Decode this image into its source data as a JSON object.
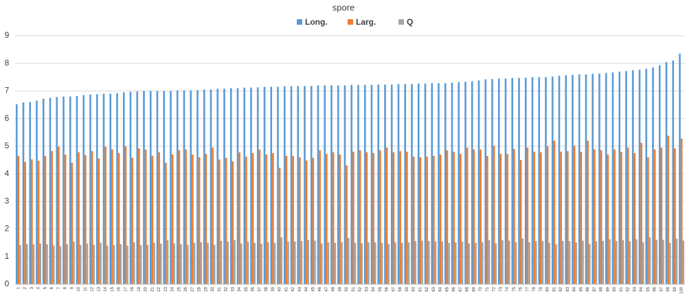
{
  "chart_data": {
    "type": "bar",
    "title": "spore",
    "categories": [
      "1",
      "2",
      "3",
      "4",
      "5",
      "6",
      "7",
      "8",
      "9",
      "10",
      "11",
      "12",
      "13",
      "14",
      "15",
      "16",
      "17",
      "18",
      "19",
      "20",
      "21",
      "22",
      "23",
      "24",
      "25",
      "26",
      "27",
      "28",
      "29",
      "30",
      "31",
      "32",
      "33",
      "34",
      "35",
      "36",
      "37",
      "38",
      "39",
      "40",
      "41",
      "42",
      "43",
      "44",
      "45",
      "46",
      "47",
      "48",
      "49",
      "50",
      "51",
      "52",
      "53",
      "54",
      "55",
      "56",
      "57",
      "58",
      "59",
      "60",
      "61",
      "62",
      "63",
      "64",
      "65",
      "66",
      "67",
      "68",
      "69",
      "70",
      "71",
      "72",
      "73",
      "74",
      "75",
      "76",
      "77",
      "78",
      "79",
      "80",
      "81",
      "82",
      "83",
      "84",
      "85",
      "86",
      "87",
      "88",
      "89",
      "90",
      "91",
      "92",
      "93",
      "94",
      "95",
      "96",
      "97",
      "98",
      "99",
      "100"
    ],
    "series": [
      {
        "name": "Long.",
        "color": "#5b9bd5",
        "values": [
          6.52,
          6.58,
          6.6,
          6.65,
          6.72,
          6.75,
          6.78,
          6.8,
          6.8,
          6.82,
          6.85,
          6.87,
          6.88,
          6.9,
          6.9,
          6.92,
          6.95,
          6.97,
          6.98,
          7.0,
          7.0,
          7.0,
          7.0,
          7.0,
          7.02,
          7.02,
          7.02,
          7.03,
          7.05,
          7.05,
          7.08,
          7.08,
          7.1,
          7.1,
          7.12,
          7.12,
          7.13,
          7.15,
          7.15,
          7.15,
          7.17,
          7.17,
          7.18,
          7.18,
          7.18,
          7.2,
          7.2,
          7.2,
          7.2,
          7.2,
          7.22,
          7.22,
          7.22,
          7.22,
          7.23,
          7.23,
          7.23,
          7.25,
          7.25,
          7.25,
          7.27,
          7.27,
          7.28,
          7.28,
          7.28,
          7.3,
          7.32,
          7.33,
          7.35,
          7.38,
          7.42,
          7.43,
          7.45,
          7.45,
          7.47,
          7.47,
          7.48,
          7.5,
          7.5,
          7.5,
          7.52,
          7.55,
          7.57,
          7.58,
          7.6,
          7.6,
          7.62,
          7.63,
          7.65,
          7.67,
          7.7,
          7.72,
          7.75,
          7.77,
          7.8,
          7.85,
          7.93,
          8.05,
          8.1,
          8.35
        ]
      },
      {
        "name": "Larg.",
        "color": "#ed7d31",
        "values": [
          4.65,
          4.43,
          4.52,
          4.47,
          4.65,
          4.82,
          4.98,
          4.7,
          4.4,
          4.78,
          4.68,
          4.82,
          4.55,
          4.98,
          4.88,
          4.75,
          5.0,
          4.58,
          4.92,
          4.88,
          4.65,
          4.78,
          4.4,
          4.7,
          4.85,
          4.88,
          4.7,
          4.6,
          4.72,
          4.95,
          4.52,
          4.58,
          4.45,
          4.78,
          4.62,
          4.75,
          4.88,
          4.7,
          4.75,
          4.22,
          4.65,
          4.65,
          4.6,
          4.48,
          4.58,
          4.85,
          4.72,
          4.78,
          4.7,
          4.3,
          4.8,
          4.85,
          4.78,
          4.75,
          4.85,
          4.95,
          4.78,
          4.82,
          4.8,
          4.62,
          4.6,
          4.62,
          4.65,
          4.7,
          4.85,
          4.8,
          4.72,
          4.95,
          4.88,
          4.88,
          4.65,
          5.02,
          4.72,
          4.72,
          4.9,
          4.5,
          4.95,
          4.8,
          4.78,
          5.0,
          5.2,
          4.8,
          4.82,
          5.02,
          4.8,
          5.2,
          4.88,
          4.85,
          4.7,
          4.88,
          4.8,
          4.95,
          4.75,
          5.12,
          4.6,
          4.88,
          4.95,
          5.38,
          4.92,
          5.28
        ]
      },
      {
        "name": "Q",
        "color": "#a5a5a5",
        "values": [
          1.42,
          1.45,
          1.45,
          1.48,
          1.45,
          1.4,
          1.38,
          1.45,
          1.55,
          1.43,
          1.47,
          1.43,
          1.5,
          1.4,
          1.42,
          1.45,
          1.4,
          1.52,
          1.42,
          1.43,
          1.5,
          1.47,
          1.6,
          1.48,
          1.45,
          1.43,
          1.5,
          1.52,
          1.5,
          1.43,
          1.57,
          1.55,
          1.6,
          1.48,
          1.55,
          1.5,
          1.47,
          1.52,
          1.5,
          1.7,
          1.55,
          1.55,
          1.57,
          1.6,
          1.58,
          1.48,
          1.52,
          1.5,
          1.53,
          1.68,
          1.5,
          1.48,
          1.52,
          1.52,
          1.5,
          1.46,
          1.52,
          1.5,
          1.52,
          1.57,
          1.58,
          1.57,
          1.56,
          1.55,
          1.5,
          1.52,
          1.55,
          1.48,
          1.5,
          1.52,
          1.6,
          1.48,
          1.6,
          1.58,
          1.52,
          1.66,
          1.52,
          1.56,
          1.57,
          1.5,
          1.45,
          1.57,
          1.57,
          1.51,
          1.58,
          1.46,
          1.56,
          1.57,
          1.63,
          1.57,
          1.6,
          1.56,
          1.63,
          1.52,
          1.7,
          1.61,
          1.6,
          1.5,
          1.65,
          1.58
        ]
      }
    ],
    "ylim": [
      0,
      9
    ],
    "yticks": [
      0,
      1,
      2,
      3,
      4,
      5,
      6,
      7,
      8,
      9
    ],
    "grid": true,
    "legend": "top"
  }
}
